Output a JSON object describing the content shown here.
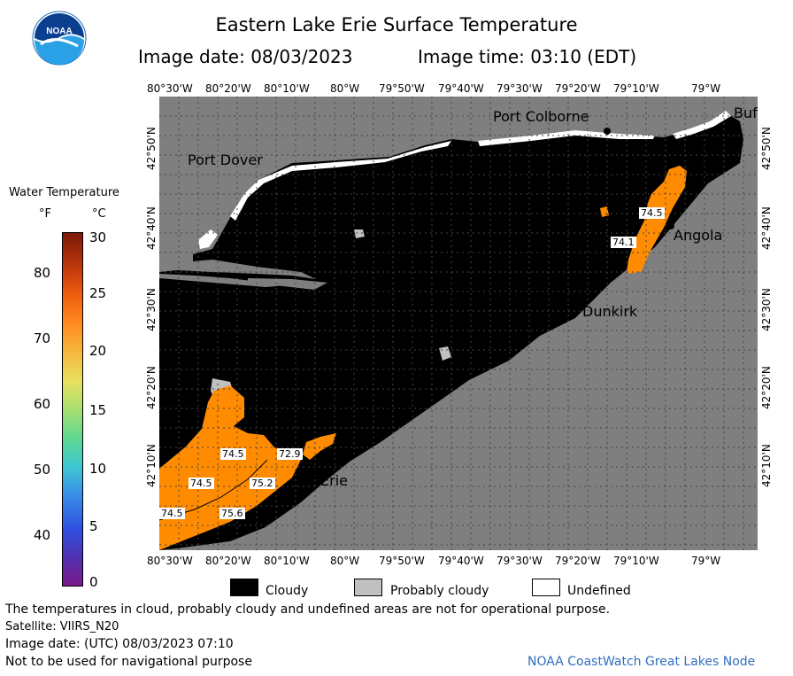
{
  "header": {
    "title": "Eastern Lake Erie Surface Temperature",
    "image_date": "Image date: 08/03/2023",
    "image_time": "Image time: 03:10 (EDT)"
  },
  "logo": {
    "text": "NOAA",
    "icon": "noaa-logo"
  },
  "colorbar": {
    "title": "Water Temperature",
    "unit_f": "°F",
    "unit_c": "°C",
    "ticks_f": [
      "80",
      "70",
      "60",
      "50",
      "40"
    ],
    "ticks_c": [
      "30",
      "25",
      "20",
      "15",
      "10",
      "5",
      "0"
    ]
  },
  "axes": {
    "lon_ticks": [
      "80°30'W",
      "80°20'W",
      "80°10'W",
      "80°W",
      "79°50'W",
      "79°40'W",
      "79°30'W",
      "79°20'W",
      "79°10'W",
      "79°W"
    ],
    "lat_ticks_left": [
      "42°50'N",
      "42°40'N",
      "42°30'N",
      "42°20'N",
      "42°10'N"
    ],
    "lat_ticks_right": [
      "42°50'N",
      "42°40'N",
      "42°30'N",
      "42°20'N",
      "42°10'N"
    ]
  },
  "places": {
    "port_colborne": "Port Colborne",
    "buffalo": "Buf",
    "port_dover": "Port Dover",
    "angola": "Angola",
    "dunkirk": "Dunkirk",
    "erie": "Erie"
  },
  "temp_labels": {
    "a": "74.5",
    "b": "74.1",
    "c": "74.5",
    "d": "72.9",
    "e": "74.5",
    "f": "75.2",
    "g": "74.5",
    "h": "75.6"
  },
  "legend": {
    "cloudy": "Cloudy",
    "probably_cloudy": "Probably cloudy",
    "undefined": "Undefined",
    "colors": {
      "cloudy": "#000000",
      "probably_cloudy": "#c0c0c0",
      "undefined": "#ffffff",
      "land": "#7f7f7f",
      "warm_water": "#ff8c00"
    }
  },
  "footer": {
    "disclaimer": "The temperatures in cloud, probably cloudy and undefined areas are not for operational purpose.",
    "satellite": "Satellite: VIIRS_N20",
    "utc": "Image date: (UTC) 08/03/2023  07:10",
    "nav": "Not to be used for navigational purpose",
    "credit": "NOAA CoastWatch Great Lakes Node"
  }
}
